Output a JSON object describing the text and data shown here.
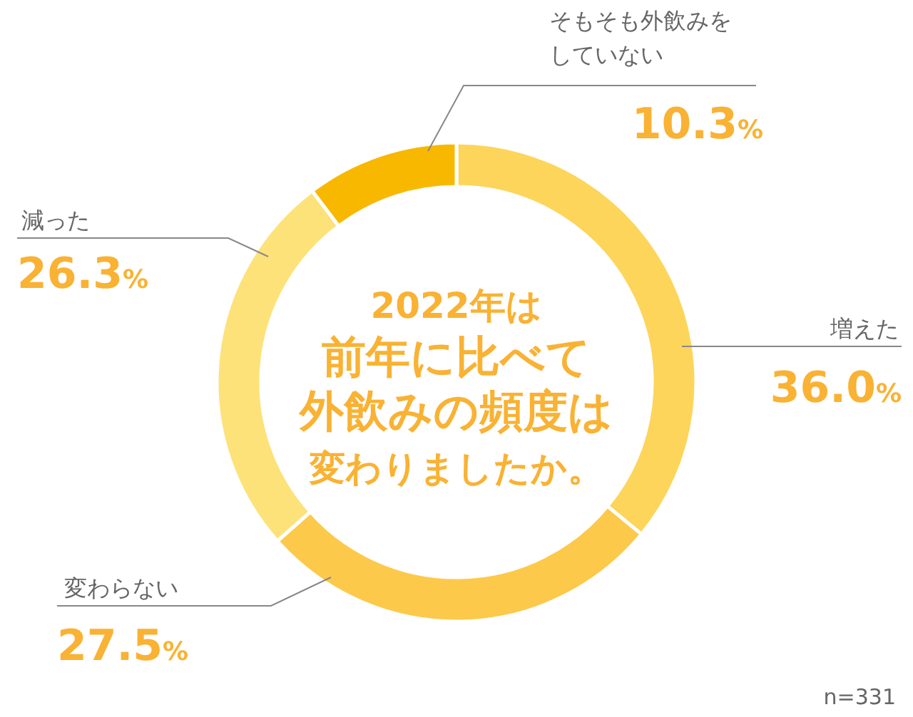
{
  "chart_data": {
    "type": "donut",
    "title": "2022年は前年に比べて外飲みの頻度は変わりましたか。",
    "categories": [
      "増えた",
      "変わらない",
      "減った",
      "そもそも外飲みをしていない"
    ],
    "values": [
      36.0,
      27.5,
      26.3,
      10.3
    ],
    "colors": [
      "#fdd55a",
      "#fdc94a",
      "#fde27a",
      "#f8b800"
    ],
    "value_labels": [
      "36.0%",
      "27.5%",
      "26.3%",
      "10.3%"
    ],
    "annotations": [
      "n=331"
    ]
  }
}
